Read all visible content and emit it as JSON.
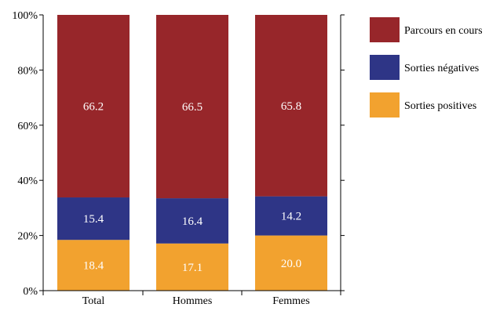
{
  "chart_data": {
    "type": "bar",
    "stacked": true,
    "categories": [
      "Total",
      "Hommes",
      "Femmes"
    ],
    "series": [
      {
        "name": "Sorties positives",
        "values": [
          18.4,
          17.1,
          20.0
        ],
        "value_labels": [
          "18.4",
          "17.1",
          "20.0"
        ],
        "color": "#f2a22f"
      },
      {
        "name": "Sorties négatives",
        "values": [
          15.4,
          16.4,
          14.2
        ],
        "value_labels": [
          "15.4",
          "16.4",
          "14.2"
        ],
        "color": "#2e3586"
      },
      {
        "name": "Parcours en cours",
        "values": [
          66.2,
          66.5,
          65.8
        ],
        "value_labels": [
          "66.2",
          "66.5",
          "65.8"
        ],
        "color": "#97262a"
      }
    ],
    "legend_order": [
      "Parcours en cours",
      "Sorties négatives",
      "Sorties positives"
    ],
    "legend_position": "right",
    "ylim": [
      0,
      100
    ],
    "yticks": [
      0,
      20,
      40,
      60,
      80,
      100
    ],
    "ytick_labels": [
      "0%",
      "20%",
      "40%",
      "60%",
      "80%",
      "100%"
    ],
    "title": "",
    "xlabel": "",
    "ylabel": "",
    "grid": false,
    "label_color": "#ffffff"
  }
}
